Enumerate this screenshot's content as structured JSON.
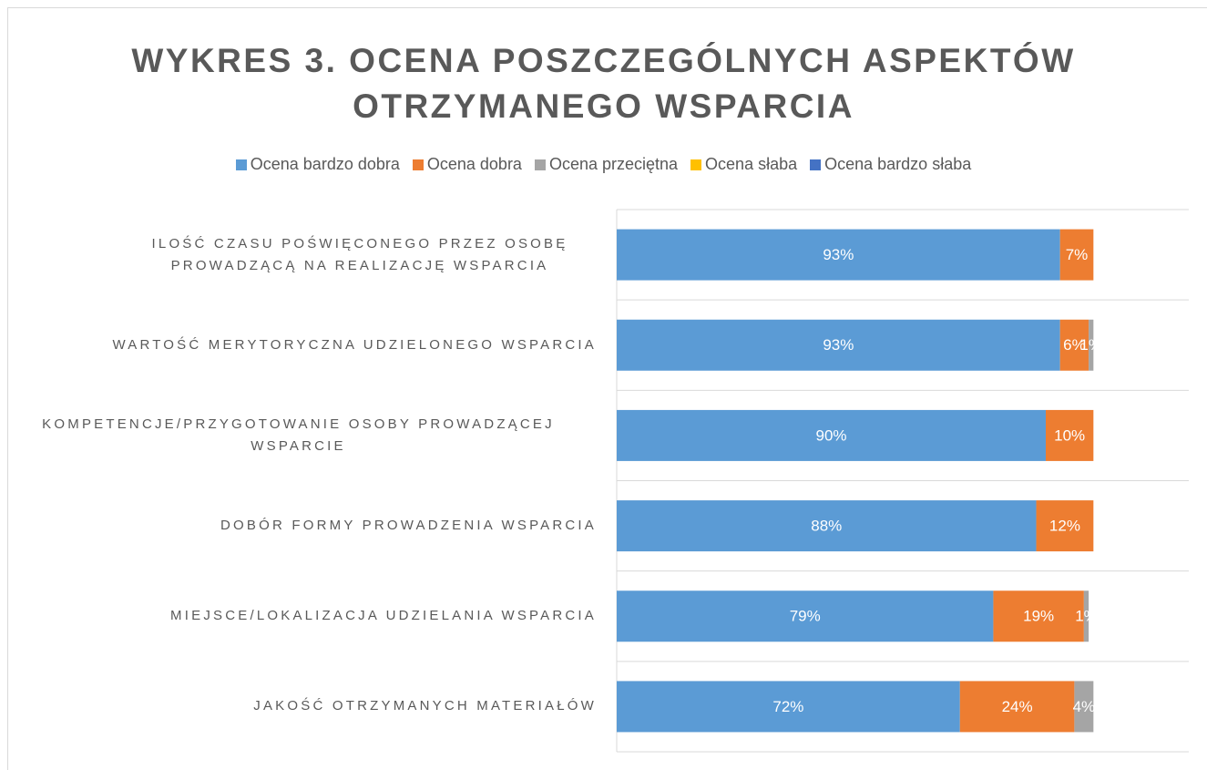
{
  "chart_data": {
    "type": "stacked_barh",
    "title": "WYKRES 3. OCENA POSZCZEGÓLNYCH ASPEKTÓW OTRZYMANEGO WSPARCIA",
    "categories": [
      "ILOŚĆ CZASU POŚWIĘCONEGO PRZEZ OSOBĘ PROWADZĄCĄ NA REALIZACJĘ WSPARCIA",
      "WARTOŚĆ MERYTORYCZNA UDZIELONEGO WSPARCIA",
      "KOMPETENCJE/PRZYGOTOWANIE OSOBY PROWADZĄCEJ WSPARCIE",
      "DOBÓR FORMY PROWADZENIA WSPARCIA",
      "MIEJSCE/LOKALIZACJA UDZIELANIA WSPARCIA",
      "JAKOŚĆ OTRZYMANYCH MATERIAŁÓW"
    ],
    "series": [
      {
        "name": "Ocena bardzo dobra",
        "color": "#5b9bd5",
        "values": [
          93,
          93,
          90,
          88,
          79,
          72
        ],
        "value_labels": [
          "93%",
          "93%",
          "90%",
          "88%",
          "79%",
          "72%"
        ]
      },
      {
        "name": "Ocena dobra",
        "color": "#ed7d31",
        "values": [
          7,
          6,
          10,
          12,
          19,
          24
        ],
        "value_labels": [
          "7%",
          "6%",
          "10%",
          "12%",
          "19%",
          "24%"
        ]
      },
      {
        "name": "Ocena przeciętna",
        "color": "#a5a5a5",
        "values": [
          0,
          1,
          0,
          0,
          1,
          4
        ],
        "value_labels": [
          null,
          "1%",
          null,
          null,
          "1%",
          "4%"
        ]
      },
      {
        "name": "Ocena słaba",
        "color": "#ffc000",
        "values": [
          0,
          0,
          0,
          0,
          0,
          0
        ],
        "value_labels": [
          null,
          null,
          null,
          null,
          null,
          null
        ]
      },
      {
        "name": "Ocena bardzo słaba",
        "color": "#4472c4",
        "values": [
          0,
          0,
          0,
          0,
          0,
          0
        ],
        "value_labels": [
          null,
          null,
          null,
          null,
          null,
          null
        ]
      }
    ],
    "xlim": [
      0,
      120
    ]
  }
}
